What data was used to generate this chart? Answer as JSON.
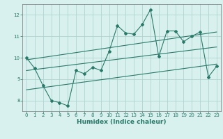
{
  "title": "",
  "xlabel": "Humidex (Indice chaleur)",
  "ylabel": "",
  "bg_color": "#d8f0ee",
  "line_color": "#2a7a6a",
  "xlim": [
    -0.5,
    23.5
  ],
  "ylim": [
    7.5,
    12.5
  ],
  "xticks": [
    0,
    1,
    2,
    3,
    4,
    5,
    6,
    7,
    8,
    9,
    10,
    11,
    12,
    13,
    14,
    15,
    16,
    17,
    18,
    19,
    20,
    21,
    22,
    23
  ],
  "yticks": [
    8,
    9,
    10,
    11,
    12
  ],
  "main_x": [
    0,
    1,
    2,
    3,
    4,
    5,
    6,
    7,
    8,
    9,
    10,
    11,
    12,
    13,
    14,
    15,
    16,
    17,
    18,
    19,
    20,
    21,
    22,
    23
  ],
  "main_y": [
    10.0,
    9.5,
    8.7,
    8.0,
    7.9,
    7.75,
    9.4,
    9.25,
    9.55,
    9.4,
    10.3,
    11.5,
    11.15,
    11.1,
    11.55,
    12.25,
    10.05,
    11.25,
    11.25,
    10.75,
    11.0,
    11.2,
    9.1,
    9.6
  ],
  "upper_line_x": [
    0,
    23
  ],
  "upper_line_y": [
    9.9,
    11.2
  ],
  "middle_line_x": [
    0,
    23
  ],
  "middle_line_y": [
    9.4,
    10.5
  ],
  "lower_line_x": [
    0,
    23
  ],
  "lower_line_y": [
    8.5,
    9.7
  ],
  "grid_color": "#aacfcc",
  "xlabel_fontsize": 6.5,
  "tick_fontsize": 5.0,
  "lw_main": 0.8,
  "lw_ref": 0.8,
  "marker_size": 2.0
}
